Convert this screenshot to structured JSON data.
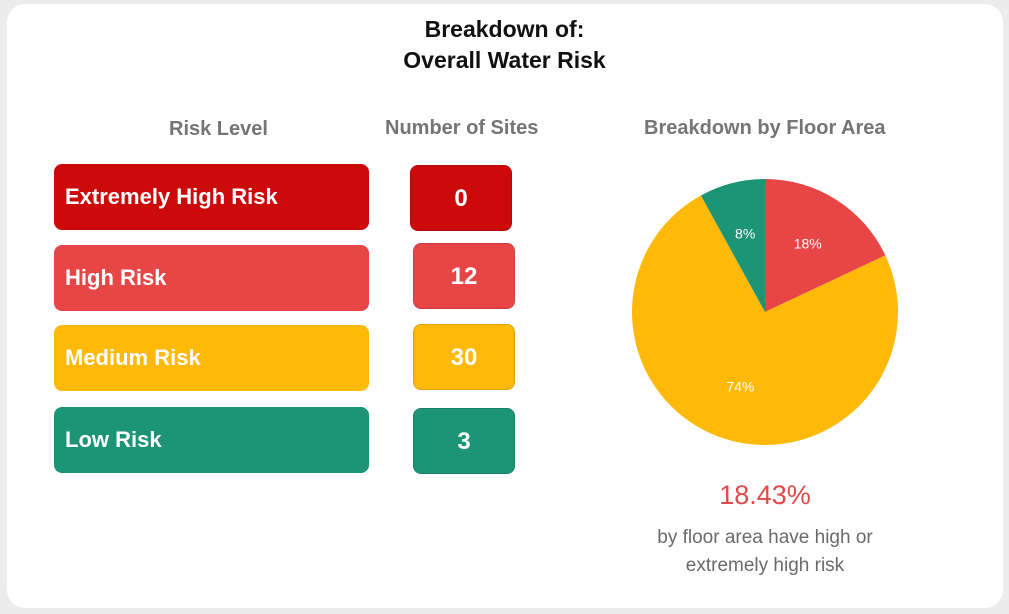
{
  "title": {
    "line1": "Breakdown of:",
    "line2": "Overall Water Risk"
  },
  "headers": {
    "risk_level": "Risk Level",
    "number_of_sites": "Number of Sites",
    "floor_area": "Breakdown by Floor Area"
  },
  "rows": [
    {
      "label": "Extremely High Risk",
      "count": "0",
      "color": "#cc0a0a"
    },
    {
      "label": "High Risk",
      "count": "12",
      "color": "#e84646"
    },
    {
      "label": "Medium Risk",
      "count": "30",
      "color": "#ffb908"
    },
    {
      "label": "Low Risk",
      "count": "3",
      "color": "#1c9476"
    }
  ],
  "summary": {
    "value": "18.43%",
    "caption_line1": "by floor area have high or",
    "caption_line2": "extremely high risk"
  },
  "chart_data": {
    "type": "pie",
    "title": "Breakdown by Floor Area",
    "slices": [
      {
        "label": "18%",
        "value": 18,
        "color": "#e84646"
      },
      {
        "label": "74%",
        "value": 74,
        "color": "#ffb908"
      },
      {
        "label": "8%",
        "value": 8,
        "color": "#1c9476"
      }
    ]
  }
}
